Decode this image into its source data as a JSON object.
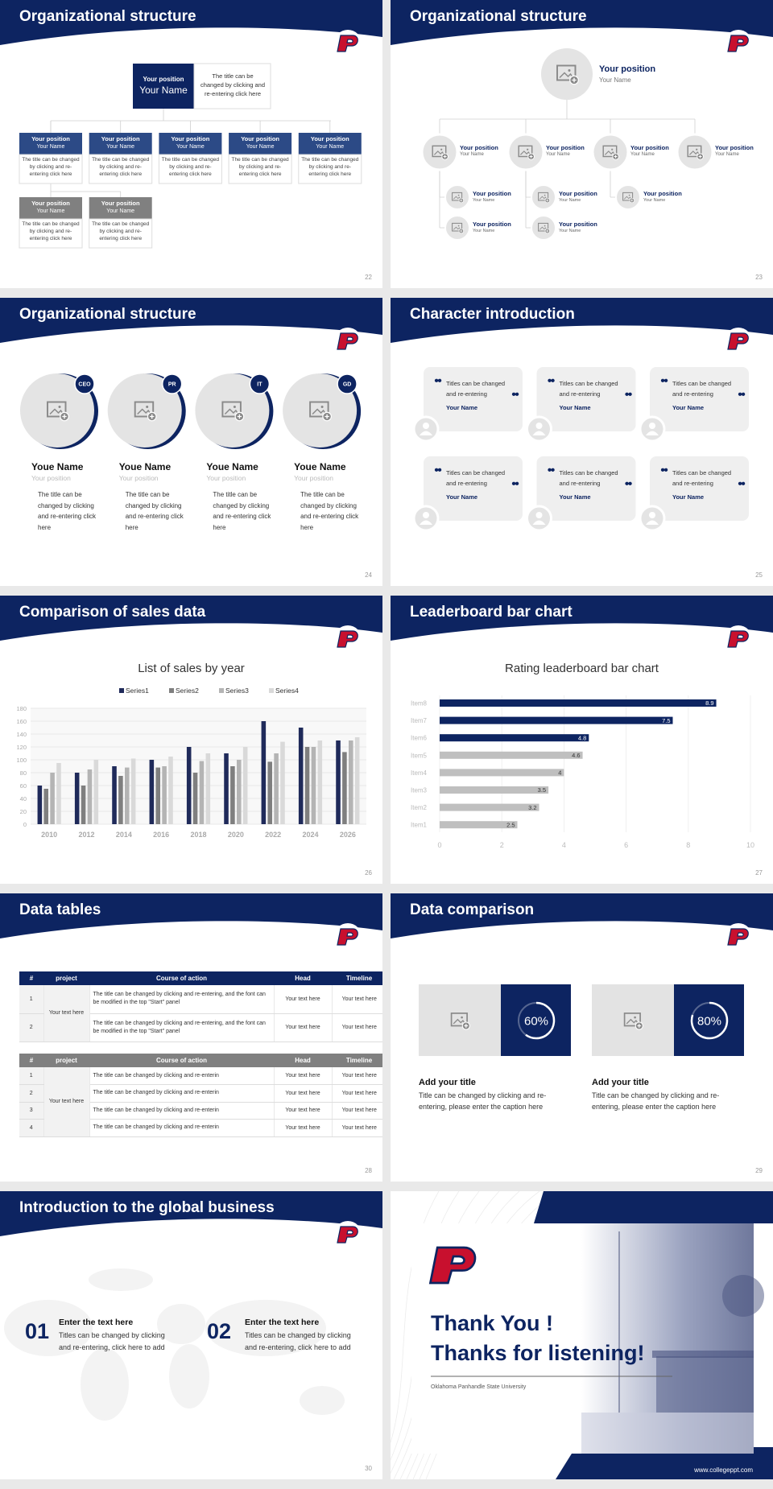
{
  "slides": [
    {
      "title": "Organizational structure",
      "page": "22",
      "top": {
        "position": "Your position",
        "name": "Your Name",
        "text": "The title can be changed by clicking and re-entering click here"
      },
      "members": [
        {
          "position": "Your position",
          "name": "Your Name",
          "text": "The title can be changed by clicking and re-entering click here"
        },
        {
          "position": "Your position",
          "name": "Your Name",
          "text": "The title can be changed by clicking and re-entering click here"
        },
        {
          "position": "Your position",
          "name": "Your Name",
          "text": "The title can be changed by clicking and re-entering click here"
        },
        {
          "position": "Your position",
          "name": "Your Name",
          "text": "The title can be changed by clicking and re-entering click here"
        },
        {
          "position": "Your position",
          "name": "Your Name",
          "text": "The title can be changed by clicking and re-entering click here"
        },
        {
          "position": "Your position",
          "name": "Your Name",
          "text": "The title can be changed by clicking and re-entering click here"
        },
        {
          "position": "Your position",
          "name": "Your Name",
          "text": "The title can be changed by clicking and re-entering click here"
        }
      ]
    },
    {
      "title": "Organizational structure",
      "page": "23",
      "top": {
        "position": "Your position",
        "name": "Your Name"
      },
      "nodes": [
        {
          "position": "Your position",
          "name": "Your Name",
          "children": [
            {
              "position": "Your position",
              "name": "Your Name"
            },
            {
              "position": "Your position",
              "name": "Your Name"
            }
          ]
        },
        {
          "position": "Your position",
          "name": "Your Name",
          "children": [
            {
              "position": "Your position",
              "name": "Your Name"
            },
            {
              "position": "Your position",
              "name": "Your Name"
            }
          ]
        },
        {
          "position": "Your position",
          "name": "Your Name",
          "children": [
            {
              "position": "Your position",
              "name": "Your Name"
            }
          ]
        },
        {
          "position": "Your position",
          "name": "Your Name"
        }
      ]
    },
    {
      "title": "Organizational structure",
      "page": "24",
      "cards": [
        {
          "badge": "CEO",
          "name": "Youe Name",
          "role": "Your position",
          "text": "The title can be changed by clicking and re-entering click here"
        },
        {
          "badge": "PR",
          "name": "Youe Name",
          "role": "Your position",
          "text": "The title can be changed by clicking and re-entering click here"
        },
        {
          "badge": "IT",
          "name": "Youe Name",
          "role": "Your position",
          "text": "The title can be changed by clicking and re-entering click here"
        },
        {
          "badge": "GD",
          "name": "Youe Name",
          "role": "Your position",
          "text": "The title can be changed by clicking and re-entering click here"
        }
      ]
    },
    {
      "title": "Character introduction",
      "page": "25",
      "cards": [
        {
          "text": "Titles can be changed and re-entering",
          "name": "Your Name"
        },
        {
          "text": "Titles can be changed and re-entering",
          "name": "Your Name"
        },
        {
          "text": "Titles can be changed and re-entering",
          "name": "Your Name"
        },
        {
          "text": "Titles can be changed and re-entering",
          "name": "Your Name"
        },
        {
          "text": "Titles can be changed and re-entering",
          "name": "Your Name"
        },
        {
          "text": "Titles can be changed and re-entering",
          "name": "Your Name"
        }
      ]
    },
    {
      "title": "Comparison of sales data",
      "page": "26",
      "chart": {
        "type": "bar",
        "title": "List of sales by year",
        "categories": [
          "2010",
          "2012",
          "2014",
          "2016",
          "2018",
          "2020",
          "2022",
          "2024",
          "2026"
        ],
        "series": [
          {
            "name": "Series1",
            "color": "#1f2a5a",
            "values": [
              60,
              80,
              90,
              100,
              120,
              110,
              160,
              150,
              130
            ]
          },
          {
            "name": "Series2",
            "color": "#7f7f7f",
            "values": [
              55,
              60,
              75,
              88,
              80,
              90,
              97,
              120,
              112
            ]
          },
          {
            "name": "Series3",
            "color": "#b4b4b4",
            "values": [
              80,
              85,
              88,
              90,
              98,
              100,
              110,
              120,
              130
            ]
          },
          {
            "name": "Series4",
            "color": "#d9d9d9",
            "values": [
              95,
              100,
              102,
              105,
              110,
              120,
              128,
              130,
              135
            ]
          }
        ],
        "ylim": [
          0,
          180
        ],
        "yticks": [
          0,
          20,
          40,
          60,
          80,
          100,
          120,
          140,
          160,
          180
        ],
        "grid": true,
        "legend": "top"
      }
    },
    {
      "title": "Leaderboard bar chart",
      "page": "27",
      "chart": {
        "type": "barh",
        "title": "Rating leaderboard bar chart",
        "categories": [
          "Item8",
          "Item7",
          "Item6",
          "Item5",
          "Item4",
          "Item3",
          "Item2",
          "Item1"
        ],
        "values": [
          8.9,
          7.5,
          4.8,
          4.6,
          4,
          3.5,
          3.2,
          2.5
        ],
        "colors": [
          "#0d2461",
          "#0d2461",
          "#0d2461",
          "#bfbfbf",
          "#bfbfbf",
          "#bfbfbf",
          "#bfbfbf",
          "#bfbfbf"
        ],
        "xlim": [
          0,
          10
        ],
        "xticks": [
          0,
          2,
          4,
          6,
          8,
          10
        ],
        "grid": true
      }
    },
    {
      "title": "Data tables",
      "page": "28",
      "tables": [
        {
          "header": [
            "#",
            "project",
            "Course of action",
            "Head",
            "Timeline"
          ],
          "project": "Your text here",
          "rows": [
            [
              "1",
              "The title can be changed by clicking and re-entering, and the font can be modified in the top \"Start\" panel",
              "Your text here",
              "Your text here"
            ],
            [
              "2",
              "The title can be changed by clicking and re-entering, and the font can be modified in the top \"Start\" panel",
              "Your text here",
              "Your text here"
            ]
          ]
        },
        {
          "header": [
            "#",
            "project",
            "Course of action",
            "Head",
            "Timeline"
          ],
          "project": "Your text here",
          "rows": [
            [
              "1",
              "The title can be changed by clicking and re-enterin",
              "Your text here",
              "Your text here"
            ],
            [
              "2",
              "The title can be changed by clicking and re-enterin",
              "Your text here",
              "Your text here"
            ],
            [
              "3",
              "The title can be changed by clicking and re-enterin",
              "Your text here",
              "Your text here"
            ],
            [
              "4",
              "The title can be changed by clicking and re-enterin",
              "Your text here",
              "Your text here"
            ]
          ]
        }
      ]
    },
    {
      "title": "Data comparison",
      "page": "29",
      "items": [
        {
          "percent": {
            "value": 60,
            "label": "60%"
          },
          "title": "Add your title",
          "text": "Title can be changed by clicking and re-entering, please enter the caption here"
        },
        {
          "percent": {
            "value": 80,
            "label": "80%"
          },
          "title": "Add your title",
          "text": "Title can be changed by clicking and re-entering, please enter the caption here"
        }
      ]
    },
    {
      "title": "Introduction to the global business",
      "page": "30",
      "items": [
        {
          "number": "01",
          "title": "Enter the text here",
          "text": "Titles can be changed by clicking and re-entering, click here to add"
        },
        {
          "number": "02",
          "title": "Enter the text here",
          "text": "Titles can be changed by clicking and re-entering, click here to add"
        }
      ]
    },
    {
      "heading": [
        "Thank You !",
        "Thanks for listening!"
      ],
      "subtitle": "Oklahoma Panhandle State University",
      "website": "www.collegeppt.com"
    }
  ]
}
